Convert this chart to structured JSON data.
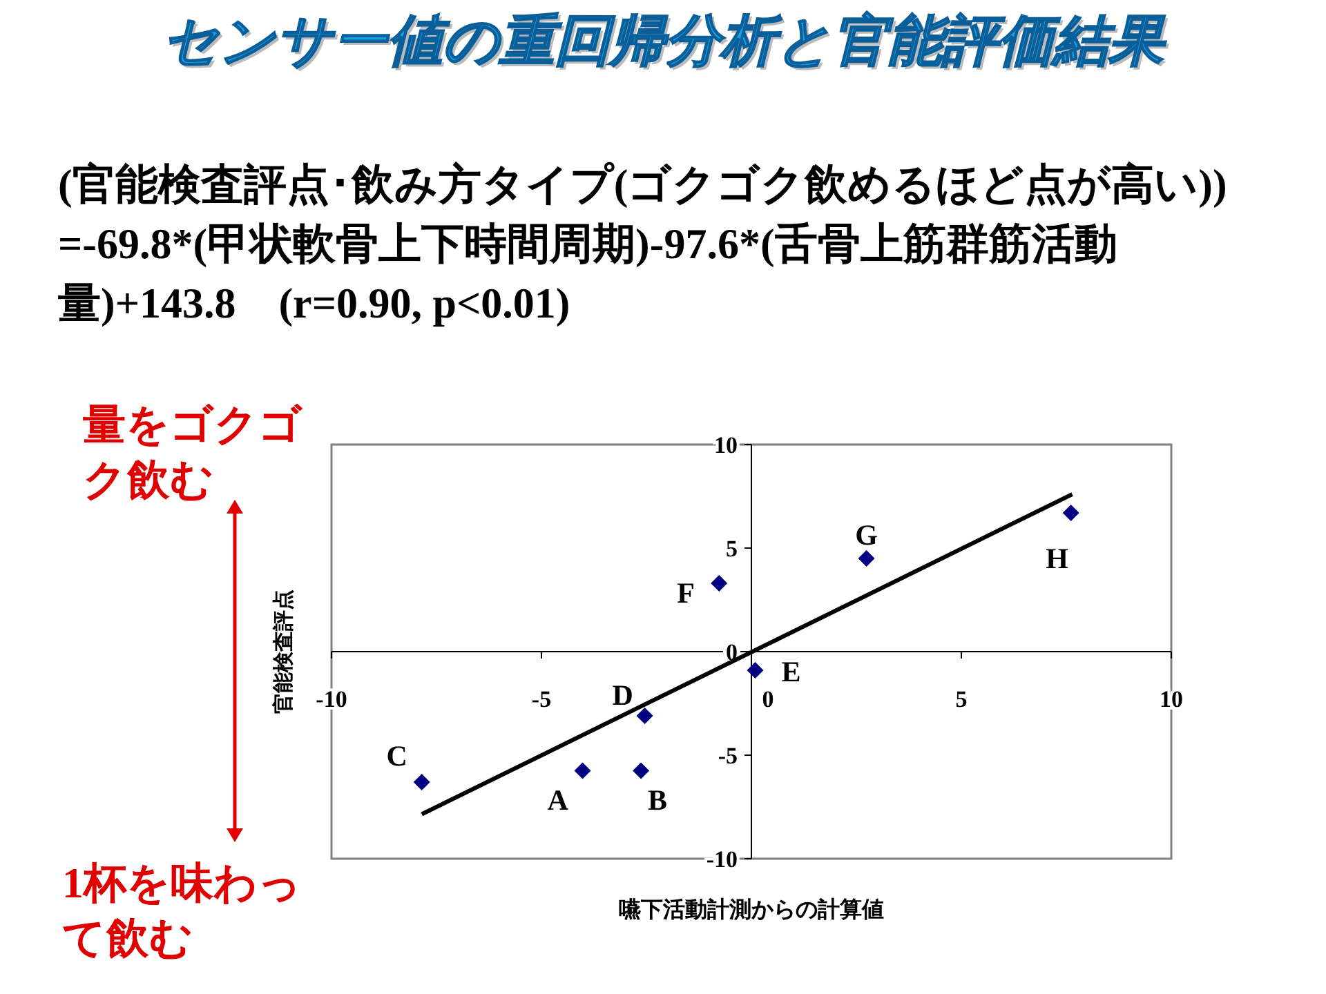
{
  "chart_data": {
    "type": "scatter",
    "title": "センサー値の重回帰分析と官能評価結果",
    "subtitle": "(官能検査評点･飲み方タイプ(ゴクゴク飲めるほど点が高い))　=-69.8*(甲状軟骨上下時間周期)-97.6*(舌骨上筋群筋活動量)+143.8　(r=0.90, p<0.01)",
    "xlabel": "嚥下活動計測からの計算値",
    "ylabel": "官能検査評点",
    "xlim": [
      -10,
      10
    ],
    "ylim": [
      -10,
      10
    ],
    "xticks": [
      -10,
      -5,
      0,
      5,
      10
    ],
    "yticks": [
      -10,
      -5,
      0,
      5,
      10
    ],
    "grid": false,
    "series": [
      {
        "type": "scatter",
        "color": "#000080",
        "marker": "diamond",
        "x": [
          -4.02,
          -2.63,
          -7.85,
          -2.54,
          0.09,
          -0.77,
          2.74,
          7.61
        ],
        "values": [
          -5.75,
          -5.75,
          -6.3,
          -3.1,
          -0.9,
          3.3,
          4.5,
          6.7
        ]
      },
      {
        "type": "line",
        "color": "#000000",
        "marker": "none",
        "line_style": "solid",
        "x": [
          -7.85,
          7.64
        ],
        "values": [
          -7.85,
          7.6
        ]
      }
    ],
    "annotations": [
      {
        "text": "A",
        "x": -4.02,
        "y": -5.75
      },
      {
        "text": "B",
        "x": -2.63,
        "y": -5.75
      },
      {
        "text": "C",
        "x": -7.85,
        "y": -6.3
      },
      {
        "text": "D",
        "x": -2.54,
        "y": -3.1
      },
      {
        "text": "E",
        "x": 0.09,
        "y": -0.9
      },
      {
        "text": "F",
        "x": -0.77,
        "y": 3.3
      },
      {
        "text": "G",
        "x": 2.74,
        "y": 4.5
      },
      {
        "text": "H",
        "x": 7.61,
        "y": 6.7
      },
      "量をゴクゴク飲む",
      "1杯を味わって飲む"
    ]
  }
}
